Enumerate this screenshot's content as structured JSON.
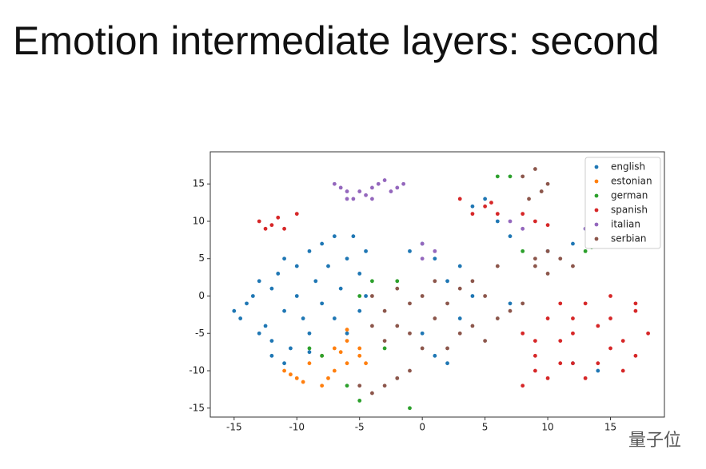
{
  "title": "Emotion intermediate layers: second",
  "watermark": "量子位",
  "chart_data": {
    "type": "scatter",
    "xlim": [
      -16.9,
      19.3
    ],
    "ylim": [
      -16.2,
      19.3
    ],
    "xticks": [
      -15,
      -10,
      -5,
      0,
      5,
      10,
      15
    ],
    "yticks": [
      -15,
      -10,
      -5,
      0,
      5,
      10,
      15
    ],
    "legend": "upper right",
    "series": [
      {
        "name": "english",
        "color": "#1f77b4",
        "x": [
          -15,
          -14.5,
          -14,
          -13.5,
          -13,
          -12.5,
          -12,
          -12,
          -11.5,
          -11,
          -11,
          -10.5,
          -10,
          -10,
          -9.5,
          -9,
          -9,
          -8.5,
          -8,
          -8,
          -7.5,
          -7,
          -7,
          -6.5,
          -6,
          -6,
          -5.5,
          -5,
          -5,
          -4.5,
          -4.5,
          -12,
          -11,
          -13,
          -9,
          0,
          1,
          2,
          -1,
          3,
          1,
          0,
          2,
          4,
          5,
          6,
          7,
          10,
          12,
          13,
          14,
          12,
          4,
          3,
          7
        ],
        "values": [
          -2,
          -3,
          -1,
          0,
          2,
          -4,
          1,
          -6,
          3,
          -2,
          5,
          -7,
          0,
          4,
          -3,
          6,
          -5,
          2,
          -1,
          7,
          4,
          -3,
          8,
          1,
          5,
          -5,
          8,
          3,
          -2,
          6,
          0,
          -8,
          -9,
          -5,
          -7.5,
          7,
          5,
          2,
          6,
          4,
          -8,
          -5,
          -9,
          12,
          13,
          10,
          8,
          6,
          7,
          9,
          -10,
          -9,
          0,
          -3,
          -1
        ]
      },
      {
        "name": "estonian",
        "color": "#ff7f0e",
        "x": [
          -11,
          -10,
          -9,
          -8,
          -7,
          -6,
          -5,
          -6,
          -7,
          -8,
          -9.5,
          -5,
          -6.5,
          -10.5,
          -4.5,
          -7.5,
          -6
        ],
        "values": [
          -10,
          -11,
          -9,
          -8,
          -7,
          -6,
          -7,
          -9,
          -10,
          -12,
          -11.5,
          -8,
          -7.5,
          -10.5,
          -9,
          -11,
          -4.5
        ]
      },
      {
        "name": "german",
        "color": "#2ca02c",
        "x": [
          -8,
          -5,
          -2,
          -4,
          -6,
          -3,
          6,
          7,
          8,
          13,
          13.5,
          14,
          -5,
          -1,
          -9
        ],
        "values": [
          -8,
          -14,
          2,
          2,
          -12,
          -7,
          16,
          16,
          6,
          6,
          6.5,
          7,
          0,
          -15,
          -7
        ]
      },
      {
        "name": "spanish",
        "color": "#d62728",
        "x": [
          -13,
          -12,
          -11.5,
          -11,
          -10,
          -12.5,
          5,
          6,
          5.5,
          8,
          9,
          10,
          3,
          4,
          8,
          9,
          8,
          9,
          10,
          11,
          12,
          13,
          14,
          15,
          16,
          17,
          18,
          11,
          12,
          13,
          14,
          15,
          16,
          17,
          10,
          11,
          12,
          15,
          17,
          9
        ],
        "values": [
          10,
          9.5,
          10.5,
          9,
          11,
          9,
          12,
          11,
          12.5,
          11,
          10,
          9.5,
          13,
          11,
          -5,
          -8,
          -12,
          -10,
          -3,
          -6,
          -9,
          -1,
          -4,
          -7,
          -10,
          -2,
          -5,
          -1,
          -5,
          -11,
          -9,
          -3,
          -6,
          -8,
          -11,
          -9,
          -3,
          0,
          -1,
          -6
        ]
      },
      {
        "name": "italian",
        "color": "#9467bd",
        "x": [
          -7,
          -6.5,
          -6,
          -5.5,
          -5,
          -4.5,
          -4,
          -3.5,
          -3,
          -2.5,
          -2,
          -1.5,
          -6,
          -4,
          0,
          0,
          1,
          7,
          8,
          13
        ],
        "values": [
          15,
          14.5,
          14,
          13,
          14,
          13.5,
          14.5,
          15,
          15.5,
          14,
          14.5,
          15,
          13,
          13,
          7,
          5,
          6,
          10,
          9,
          9
        ]
      },
      {
        "name": "serbian",
        "color": "#8c564b",
        "x": [
          -4,
          -3,
          -2,
          -2,
          -1,
          0,
          1,
          0,
          -1,
          2,
          3,
          4,
          5,
          6,
          7,
          8,
          3,
          4,
          5,
          -3,
          -2,
          -3,
          -4,
          -5,
          -1,
          2,
          9,
          10,
          11,
          10,
          9,
          8,
          9,
          10,
          9.5,
          8.5,
          6,
          12,
          -4,
          1
        ],
        "values": [
          0,
          -2,
          -4,
          1,
          -1,
          0,
          -3,
          -7,
          -5,
          -1,
          -5,
          -4,
          -6,
          -3,
          -2,
          -1,
          1,
          2,
          0,
          -6,
          -11,
          -12,
          -13,
          -12,
          -10,
          -7,
          4,
          3,
          5,
          6,
          5,
          16,
          17,
          15,
          14,
          13,
          4,
          4,
          -4,
          2
        ]
      }
    ]
  }
}
